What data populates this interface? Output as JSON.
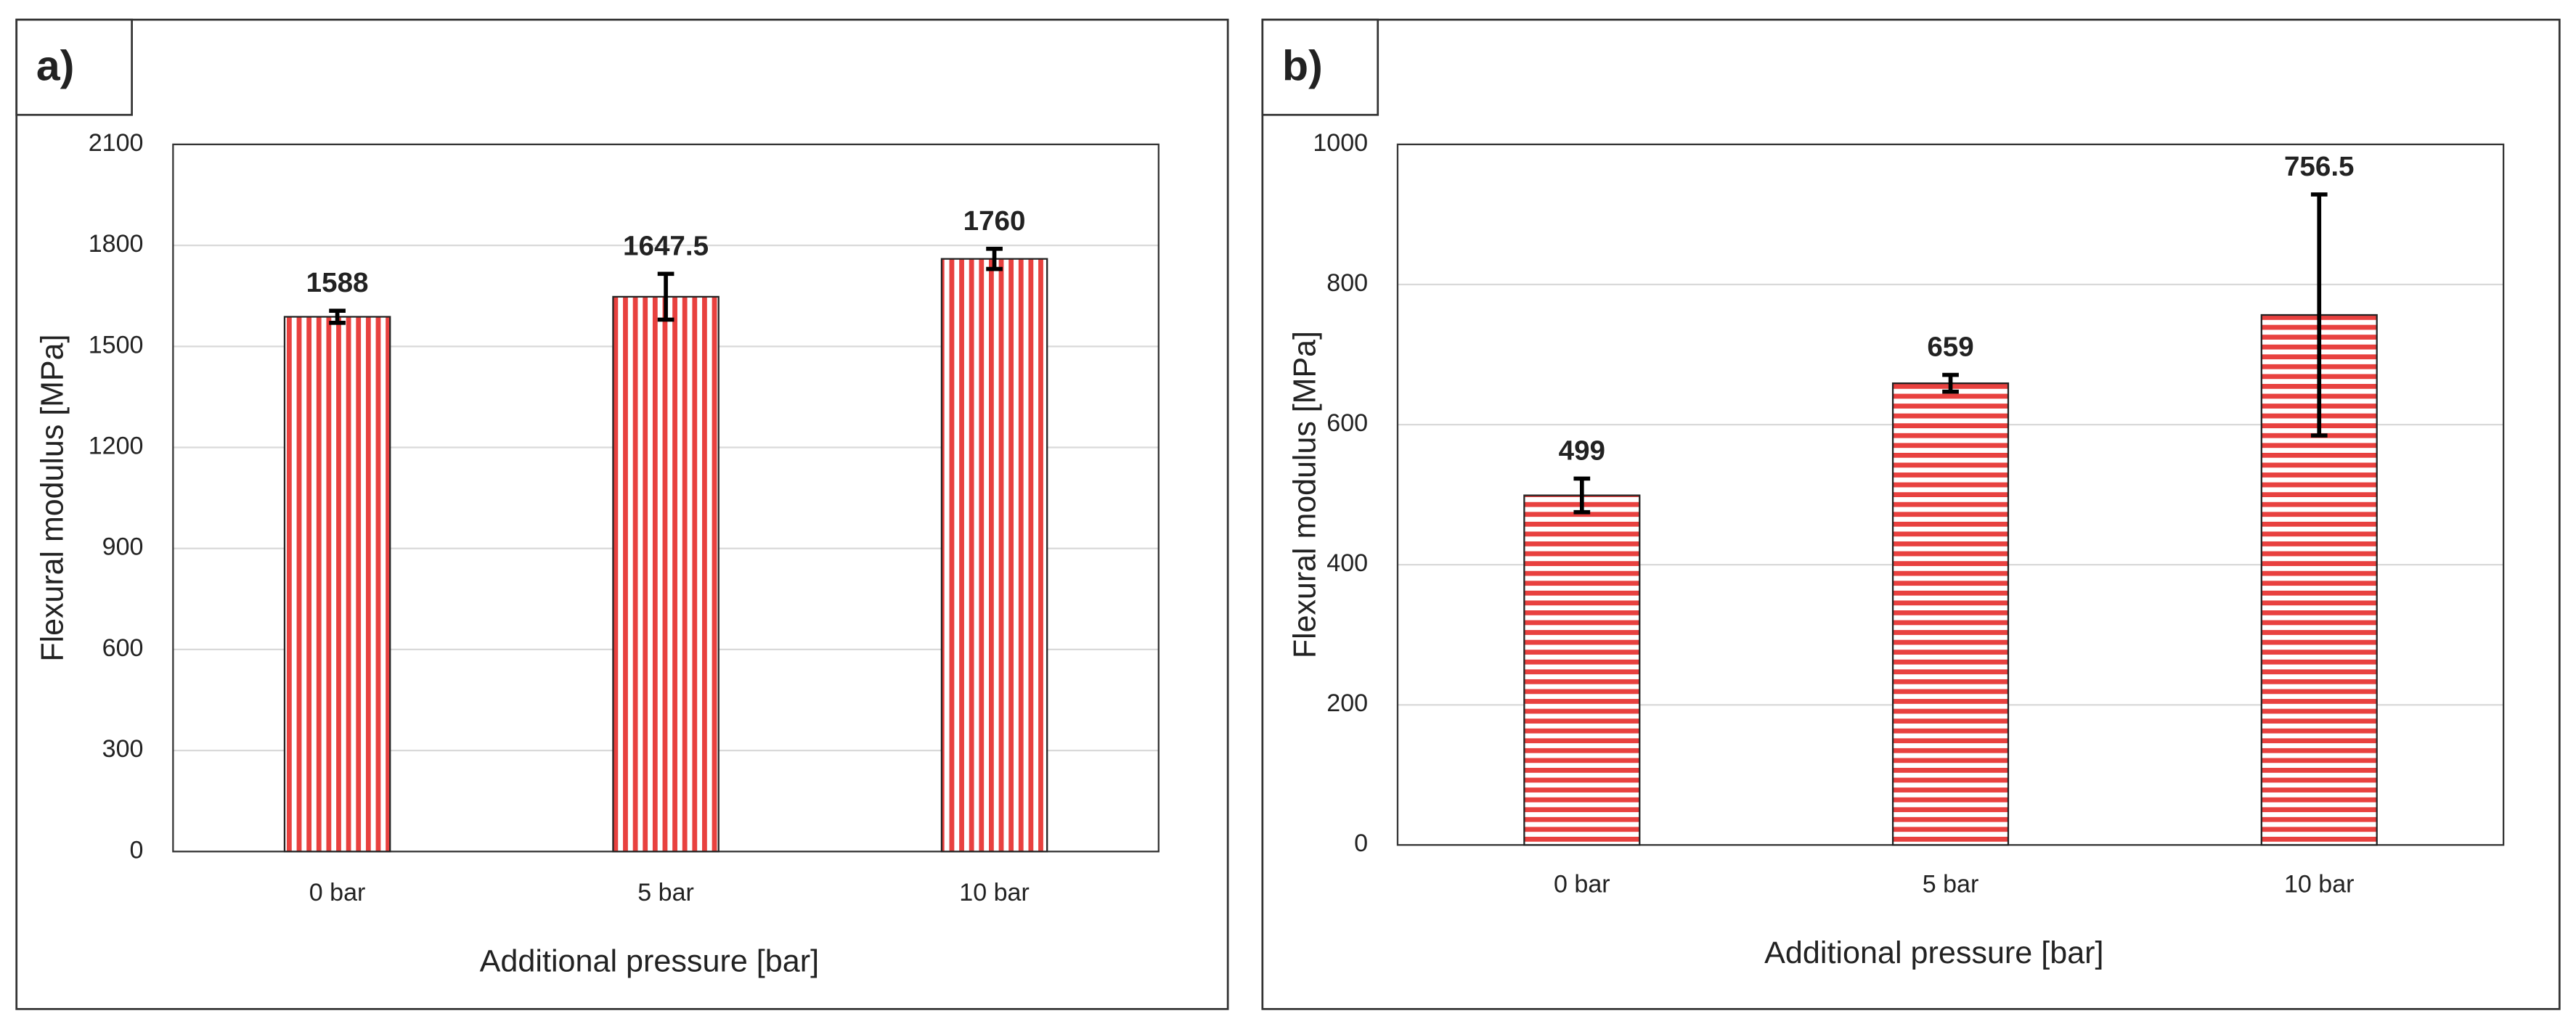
{
  "chart_data": [
    {
      "type": "bar",
      "label": "a)",
      "x_label": "Additional pressure [bar]",
      "y_label": "Flexural modulus [MPa]",
      "categories": [
        "0 bar",
        "5 bar",
        "10 bar"
      ],
      "values": [
        1588,
        1647.5,
        1760
      ],
      "errors": [
        18,
        68,
        30
      ],
      "color": "#e8413f",
      "pattern": "vertical",
      "ylim": [
        0,
        2100
      ],
      "yticks": [
        0,
        300,
        600,
        900,
        1200,
        1500,
        1800,
        2100
      ],
      "grid": true
    },
    {
      "type": "bar",
      "label": "b)",
      "x_label": "Additional pressure [bar]",
      "y_label": "Flexural modulus [MPa]",
      "categories": [
        "0 bar",
        "5 bar",
        "10 bar"
      ],
      "values": [
        499,
        659,
        756.5
      ],
      "errors": [
        24,
        12,
        172
      ],
      "color": "#e8413f",
      "pattern": "horizontal",
      "ylim": [
        0,
        1000
      ],
      "yticks": [
        0,
        200,
        400,
        600,
        800,
        1000
      ],
      "grid": true
    }
  ]
}
